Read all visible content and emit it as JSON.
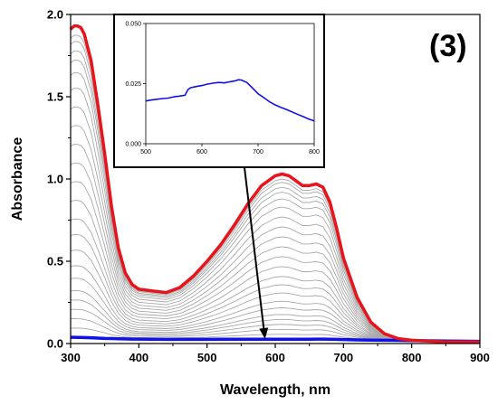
{
  "panel_label": "(3)",
  "colors": {
    "initial": "#e8141b",
    "final": "#1010e8",
    "intermediate": "#a8a8a8",
    "arrow": "#000000"
  },
  "chart_data": [
    {
      "type": "line",
      "title": "",
      "xlabel": "Wavelength, nm",
      "ylabel": "Absorbance",
      "xlim": [
        300,
        900
      ],
      "ylim": [
        0,
        2.0
      ],
      "xticks": [
        300,
        400,
        500,
        600,
        700,
        800,
        900
      ],
      "yticks": [
        0.0,
        0.5,
        1.0,
        1.5,
        2.0
      ],
      "xtick_labels": [
        "300",
        "400",
        "500",
        "600",
        "700",
        "800",
        "900"
      ],
      "ytick_labels": [
        "0.0",
        "0.5",
        "1.0",
        "1.5",
        "2.0"
      ],
      "grid": false,
      "series": [
        {
          "role": "initial",
          "x": [
            300,
            305,
            310,
            315,
            320,
            330,
            340,
            350,
            360,
            370,
            380,
            390,
            400,
            420,
            440,
            460,
            480,
            500,
            520,
            540,
            560,
            580,
            600,
            610,
            620,
            630,
            640,
            650,
            660,
            670,
            680,
            690,
            700,
            720,
            740,
            760,
            780,
            800,
            850,
            900
          ],
          "y": [
            1.91,
            1.93,
            1.93,
            1.92,
            1.88,
            1.72,
            1.45,
            1.15,
            0.83,
            0.58,
            0.43,
            0.36,
            0.33,
            0.32,
            0.31,
            0.34,
            0.41,
            0.5,
            0.6,
            0.72,
            0.85,
            0.96,
            1.02,
            1.03,
            1.02,
            0.99,
            0.96,
            0.96,
            0.97,
            0.95,
            0.86,
            0.7,
            0.52,
            0.28,
            0.13,
            0.06,
            0.03,
            0.02,
            0.01,
            0.01
          ]
        },
        {
          "role": "final",
          "x": [
            300,
            305,
            310,
            315,
            320,
            330,
            340,
            350,
            360,
            370,
            380,
            390,
            400,
            420,
            440,
            460,
            480,
            500,
            520,
            540,
            560,
            580,
            600,
            610,
            620,
            630,
            640,
            650,
            660,
            670,
            680,
            690,
            700,
            720,
            740,
            760,
            780,
            800,
            850,
            900
          ],
          "y": [
            0.038,
            0.038,
            0.037,
            0.037,
            0.036,
            0.035,
            0.033,
            0.031,
            0.03,
            0.029,
            0.028,
            0.027,
            0.027,
            0.026,
            0.025,
            0.025,
            0.025,
            0.025,
            0.026,
            0.026,
            0.026,
            0.026,
            0.026,
            0.026,
            0.026,
            0.026,
            0.026,
            0.026,
            0.027,
            0.027,
            0.026,
            0.025,
            0.024,
            0.022,
            0.021,
            0.02,
            0.019,
            0.018,
            0.015,
            0.013
          ]
        }
      ],
      "intermediate_fractions": [
        0.03,
        0.06,
        0.09,
        0.12,
        0.15,
        0.19,
        0.23,
        0.28,
        0.33,
        0.38,
        0.44,
        0.5,
        0.56,
        0.62,
        0.68,
        0.74,
        0.8,
        0.85,
        0.89,
        0.92,
        0.95,
        0.97
      ],
      "annotations": [
        {
          "type": "arrow",
          "from": [
            532,
            0.98
          ],
          "to": [
            585,
            0.028
          ]
        }
      ]
    },
    {
      "type": "line",
      "title": "",
      "xlabel": "",
      "ylabel": "",
      "xlim": [
        500,
        800
      ],
      "ylim": [
        0,
        0.05
      ],
      "xticks": [
        500,
        600,
        700,
        800
      ],
      "yticks": [
        0.0,
        0.025,
        0.05
      ],
      "xtick_labels": [
        "500",
        "600",
        "700",
        "800"
      ],
      "ytick_labels": [
        "0.000",
        "0.025",
        "0.050"
      ],
      "grid": false,
      "series": [
        {
          "role": "final",
          "x": [
            500,
            510,
            520,
            530,
            540,
            550,
            560,
            570,
            575,
            580,
            590,
            600,
            610,
            620,
            630,
            640,
            650,
            660,
            665,
            670,
            680,
            690,
            700,
            710,
            720,
            730,
            740,
            750,
            760,
            770,
            780,
            790,
            800
          ],
          "y": [
            0.0178,
            0.0182,
            0.0185,
            0.0188,
            0.019,
            0.0195,
            0.0198,
            0.0202,
            0.0225,
            0.0233,
            0.0238,
            0.0242,
            0.0248,
            0.0252,
            0.0255,
            0.0253,
            0.0258,
            0.0262,
            0.0266,
            0.0265,
            0.0255,
            0.0232,
            0.0208,
            0.0192,
            0.0175,
            0.0162,
            0.0152,
            0.0143,
            0.0133,
            0.0123,
            0.0113,
            0.0103,
            0.0095
          ]
        }
      ]
    }
  ]
}
